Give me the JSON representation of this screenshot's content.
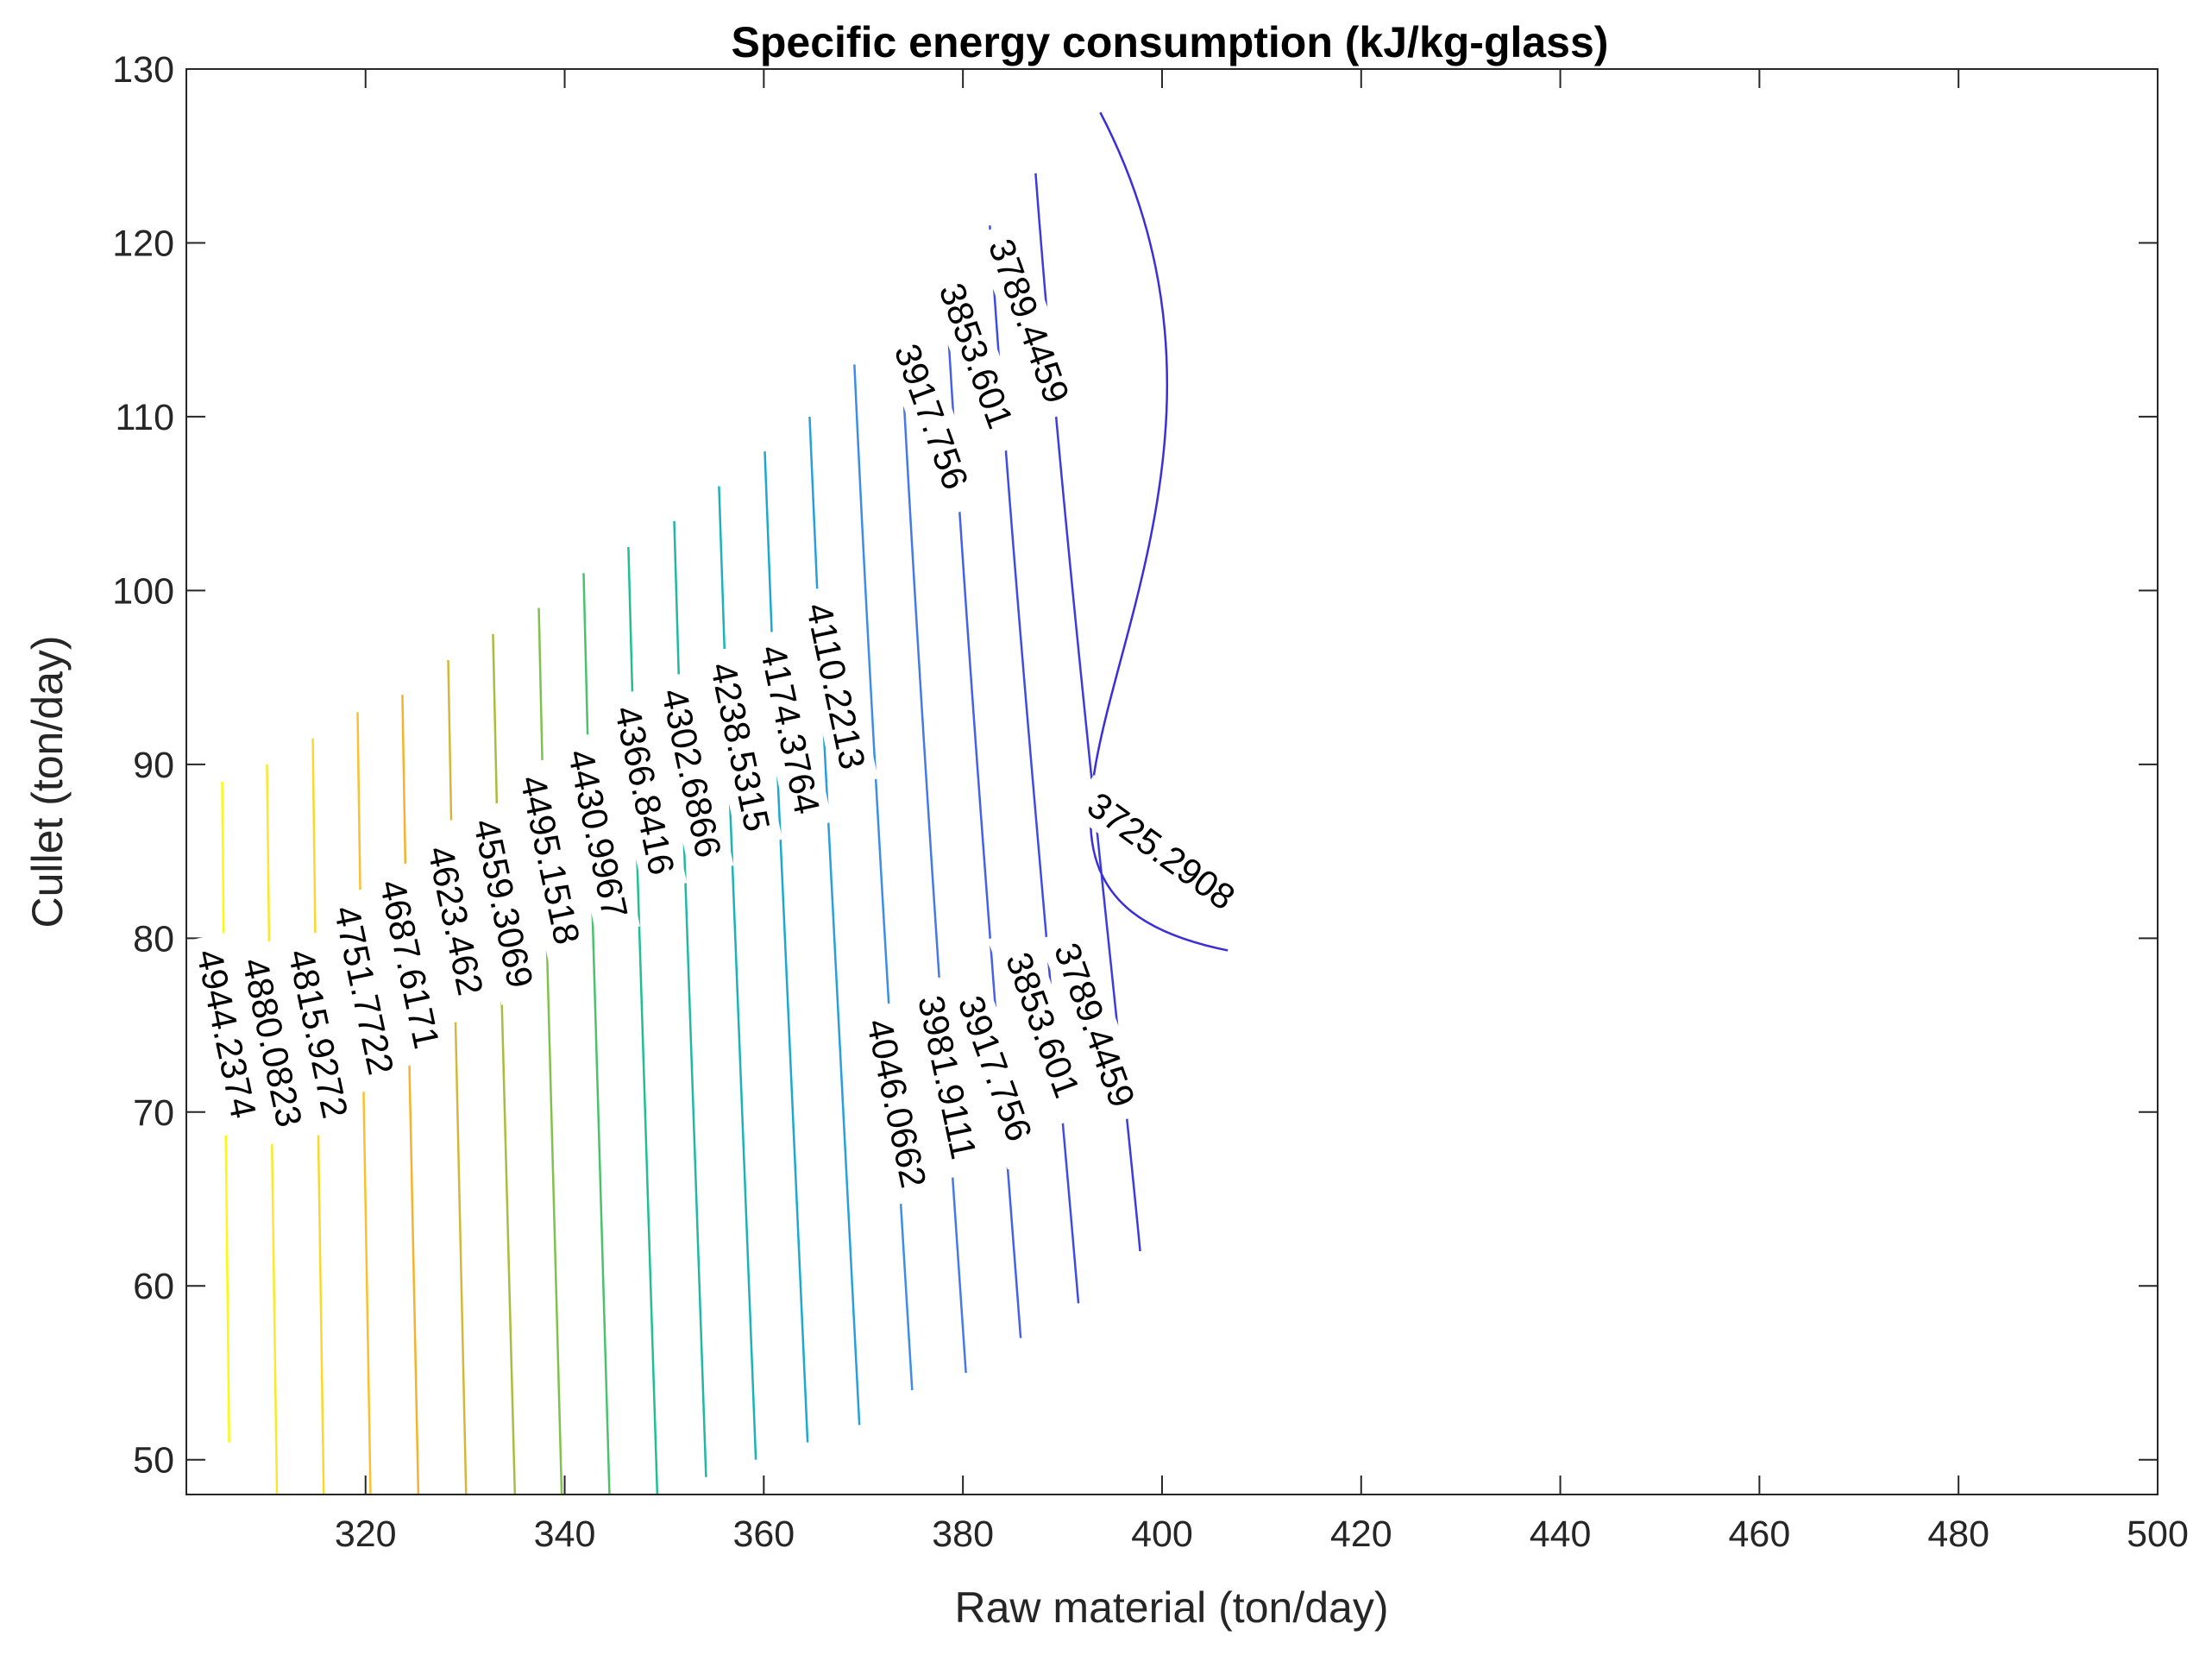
{
  "chart_data": {
    "type": "contour",
    "title": "Specific energy consumption (kJ/kg-glass)",
    "xlabel": "Raw material (ton/day)",
    "ylabel": "Cullet (ton/day)",
    "xlim": [
      302,
      500
    ],
    "ylim": [
      48,
      130
    ],
    "xticks": [
      320,
      340,
      360,
      380,
      400,
      420,
      440,
      460,
      480,
      500
    ],
    "yticks": [
      50,
      60,
      70,
      80,
      90,
      100,
      110,
      120,
      130
    ],
    "xtick_labels": [
      "320",
      "340",
      "360",
      "380",
      "400",
      "420",
      "440",
      "460",
      "480",
      "500"
    ],
    "ytick_labels": [
      "50",
      "60",
      "70",
      "80",
      "90",
      "100",
      "110",
      "120",
      "130"
    ],
    "grid": false,
    "box": true,
    "colormap": "parula",
    "levels": [
      {
        "value": 4944.2374,
        "label": "4944.2374",
        "color": "#f9fb0e",
        "points": [
          [
            305.6,
            89
          ],
          [
            306.3,
            51
          ]
        ],
        "labels_at": [
          [
            306.0,
            74.5
          ]
        ]
      },
      {
        "value": 4880.0823,
        "label": "4880.0823",
        "color": "#f8e92a",
        "points": [
          [
            310.1,
            90
          ],
          [
            311.1,
            48
          ]
        ],
        "labels_at": [
          [
            310.6,
            74.0
          ]
        ]
      },
      {
        "value": 4815.9272,
        "label": "4815.9272",
        "color": "#fad72d",
        "points": [
          [
            314.7,
            91.5
          ],
          [
            315.8,
            48
          ]
        ],
        "labels_at": [
          [
            315.2,
            74.5
          ]
        ]
      },
      {
        "value": 4751.7722,
        "label": "4751.7722",
        "color": "#fbbf30",
        "points": [
          [
            319.2,
            93
          ],
          [
            320.5,
            48
          ]
        ],
        "labels_at": [
          [
            319.8,
            77.0
          ]
        ]
      },
      {
        "value": 4687.6171,
        "label": "4687.6171",
        "color": "#f6b22d",
        "points": [
          [
            323.7,
            94
          ],
          [
            325.3,
            48
          ]
        ],
        "labels_at": [
          [
            324.4,
            78.5
          ]
        ]
      },
      {
        "value": 4623.462,
        "label": "4623.462",
        "color": "#d2b839",
        "points": [
          [
            328.3,
            96
          ],
          [
            330.1,
            48
          ]
        ],
        "labels_at": [
          [
            329.0,
            81.0
          ]
        ]
      },
      {
        "value": 4559.3069,
        "label": "4559.3069",
        "color": "#a8bd3b",
        "points": [
          [
            332.8,
            97.5
          ],
          [
            335.0,
            48
          ]
        ],
        "labels_at": [
          [
            333.8,
            82.0
          ]
        ]
      },
      {
        "value": 4495.1518,
        "label": "4495.1518",
        "color": "#80c14b",
        "points": [
          [
            337.4,
            99
          ],
          [
            339.7,
            48
          ]
        ],
        "labels_at": [
          [
            338.5,
            84.5
          ]
        ]
      },
      {
        "value": 4430.9967,
        "label": "4430.9967",
        "color": "#4ac16d",
        "points": [
          [
            341.9,
            101
          ],
          [
            344.5,
            48
          ]
        ],
        "labels_at": [
          [
            343.3,
            86.0
          ]
        ]
      },
      {
        "value": 4366.8416,
        "label": "4366.8416",
        "color": "#20bf93",
        "points": [
          [
            346.4,
            102.5
          ],
          [
            349.3,
            48
          ]
        ],
        "labels_at": [
          [
            348.0,
            88.5
          ]
        ]
      },
      {
        "value": 4302.6866,
        "label": "4302.6866",
        "color": "#20b8a3",
        "points": [
          [
            351.0,
            104
          ],
          [
            354.2,
            49
          ]
        ],
        "labels_at": [
          [
            352.7,
            89.5
          ]
        ]
      },
      {
        "value": 4238.5315,
        "label": "4238.5315",
        "color": "#1bb3b6",
        "points": [
          [
            355.5,
            106
          ],
          [
            359.2,
            50
          ]
        ],
        "labels_at": [
          [
            357.6,
            91.0
          ]
        ]
      },
      {
        "value": 4174.3764,
        "label": "4174.3764",
        "color": "#1ca9cf",
        "points": [
          [
            360.1,
            108
          ],
          [
            364.4,
            51
          ]
        ],
        "labels_at": [
          [
            362.6,
            92.0
          ]
        ]
      },
      {
        "value": 4110.2213,
        "label": "4110.2213",
        "color": "#279fdf",
        "points": [
          [
            364.6,
            110
          ],
          [
            369.6,
            52
          ]
        ],
        "labels_at": [
          [
            367.2,
            94.5
          ]
        ]
      },
      {
        "value": 4046.0662,
        "label": "4046.0662",
        "color": "#3c8de8",
        "points": [
          [
            369.1,
            113
          ],
          [
            374.9,
            54
          ]
        ],
        "labels_at": [
          [
            373.3,
            70.5
          ]
        ]
      },
      {
        "value": 3981.9111,
        "label": "3981.9111",
        "color": "#4479e8",
        "points": [
          [
            373.7,
            115
          ],
          [
            380.3,
            55
          ]
        ],
        "labels_at": [
          [
            378.4,
            72.0
          ]
        ]
      },
      {
        "value": 3917.756,
        "label": "3917.756",
        "color": "#4461e7",
        "points": [
          [
            378.2,
            118
          ],
          [
            385.8,
            57
          ]
        ],
        "labels_at": [
          [
            376.8,
            110.0
          ],
          [
            383.2,
            72.5
          ]
        ]
      },
      {
        "value": 3853.601,
        "label": "3853.601",
        "color": "#3f4ce3",
        "points": [
          [
            382.7,
            121
          ],
          [
            391.6,
            59
          ]
        ],
        "labels_at": [
          [
            381.3,
            113.5
          ],
          [
            388.0,
            75.0
          ]
        ]
      },
      {
        "value": 3789.4459,
        "label": "3789.4459",
        "color": "#3c3bdd",
        "points": [
          [
            387.3,
            124
          ],
          [
            397.8,
            62
          ]
        ],
        "labels_at": [
          [
            386.6,
            115.5
          ],
          [
            393.2,
            75.0
          ]
        ]
      },
      {
        "value": 3725.2908,
        "label": "3725.2908",
        "color": "#3a2fd8",
        "points": [
          [
            393.8,
            127.5
          ],
          [
            406.6,
            79.3
          ]
        ],
        "labels_at": [
          [
            399.9,
            85.0
          ]
        ]
      }
    ]
  }
}
